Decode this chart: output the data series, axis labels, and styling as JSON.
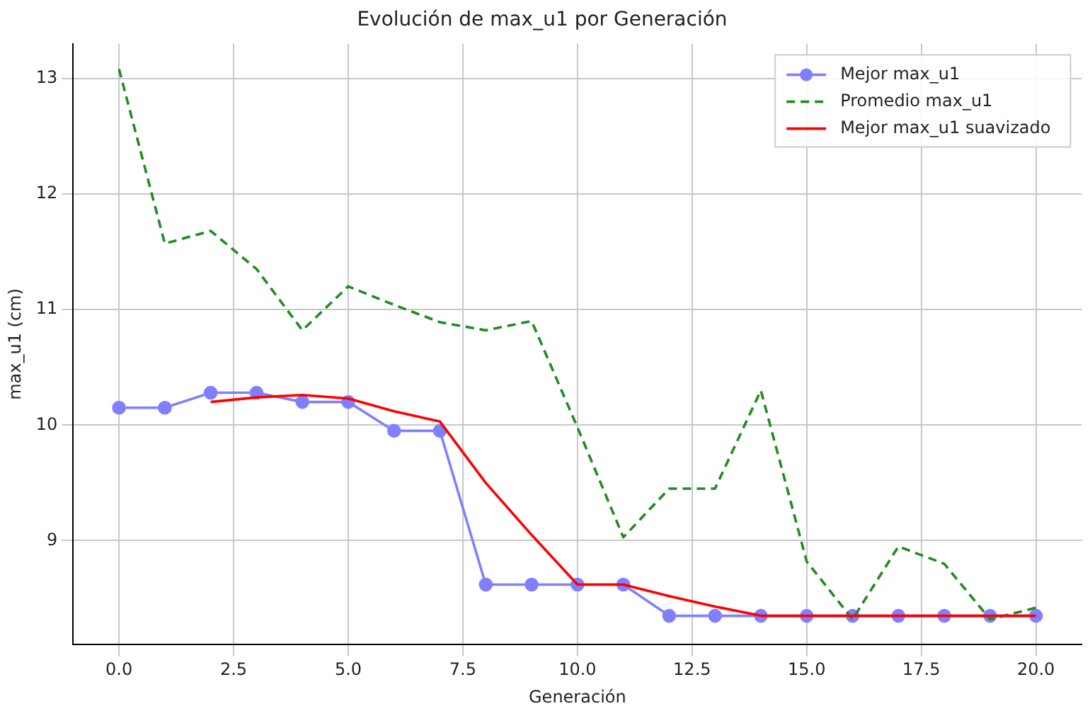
{
  "chart_data": {
    "type": "line",
    "title": "Evolución de max_u1 por Generación",
    "xlabel": "Generación",
    "ylabel": "max_u1 (cm)",
    "xlim": [
      -1,
      21
    ],
    "xticks": [
      {
        "value": 0,
        "label": "0.0"
      },
      {
        "value": 2.5,
        "label": "2.5"
      },
      {
        "value": 5,
        "label": "5.0"
      },
      {
        "value": 7.5,
        "label": "7.5"
      },
      {
        "value": 10,
        "label": "10.0"
      },
      {
        "value": 12.5,
        "label": "12.5"
      },
      {
        "value": 15,
        "label": "15.0"
      },
      {
        "value": 17.5,
        "label": "17.5"
      },
      {
        "value": 20,
        "label": "20.0"
      }
    ],
    "ylim": [
      8.1,
      13.3
    ],
    "yticks": [
      9,
      10,
      11,
      12,
      13
    ],
    "grid": true,
    "legend": "top right",
    "series": [
      {
        "name": "Mejor max_u1",
        "color": "#8080ff",
        "marker": "circle",
        "line_style": "solid",
        "x": [
          0,
          1,
          2,
          3,
          4,
          5,
          6,
          7,
          8,
          9,
          10,
          11,
          12,
          13,
          14,
          15,
          16,
          17,
          18,
          19,
          20
        ],
        "values": [
          10.15,
          10.15,
          10.28,
          10.28,
          10.2,
          10.2,
          9.95,
          9.95,
          8.62,
          8.62,
          8.62,
          8.62,
          8.35,
          8.35,
          8.35,
          8.35,
          8.35,
          8.35,
          8.35,
          8.35,
          8.35
        ]
      },
      {
        "name": "Promedio max_u1",
        "color": "#228b22",
        "marker": "none",
        "line_style": "dashed",
        "x": [
          0,
          1,
          2,
          3,
          4,
          5,
          6,
          7,
          8,
          9,
          10,
          11,
          12,
          13,
          14,
          15,
          16,
          17,
          18,
          19,
          20
        ],
        "values": [
          13.08,
          11.57,
          11.68,
          11.35,
          10.82,
          11.2,
          11.04,
          10.89,
          10.82,
          10.9,
          9.98,
          9.03,
          9.45,
          9.45,
          10.3,
          8.82,
          8.32,
          8.95,
          8.8,
          8.32,
          8.42
        ]
      },
      {
        "name": "Mejor max_u1 suavizado",
        "color": "#ff0000",
        "marker": "none",
        "line_style": "solid",
        "x": [
          2,
          3,
          4,
          5,
          6,
          7,
          8,
          9,
          10,
          11,
          12,
          13,
          14,
          15,
          16,
          17,
          18,
          19,
          20
        ],
        "values": [
          10.2,
          10.24,
          10.26,
          10.23,
          10.12,
          10.03,
          9.5,
          9.05,
          8.62,
          8.62,
          8.52,
          8.43,
          8.35,
          8.35,
          8.35,
          8.35,
          8.35,
          8.35,
          8.35
        ]
      }
    ]
  }
}
